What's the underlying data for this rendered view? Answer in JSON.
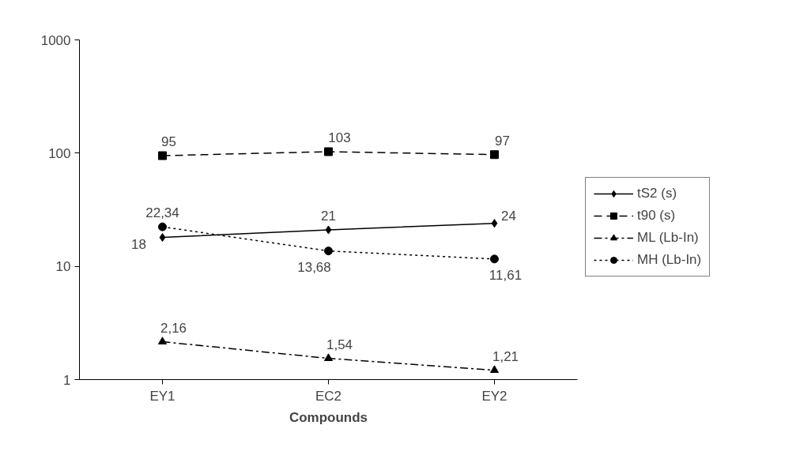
{
  "chart_data": {
    "type": "line",
    "xlabel": "Compounds",
    "categories": [
      "EY1",
      "EC2",
      "EY2"
    ],
    "log": "y",
    "ylim": [
      1,
      1000
    ],
    "yticks": [
      1,
      10,
      100,
      1000
    ],
    "grid": false,
    "legend": "right",
    "series": [
      {
        "name": "tS2 (s)",
        "color": "#000000",
        "marker": "diamond",
        "line_style": "solid",
        "values": [
          18,
          21,
          24
        ],
        "value_labels": [
          "18",
          "21",
          "24"
        ]
      },
      {
        "name": "t90 (s)",
        "color": "#000000",
        "marker": "square",
        "line_style": "dashed",
        "values": [
          95,
          103,
          97
        ],
        "value_labels": [
          "95",
          "103",
          "97"
        ]
      },
      {
        "name": "ML (Lb-In)",
        "color": "#000000",
        "marker": "triangle",
        "line_style": "dashdot",
        "values": [
          2.16,
          1.54,
          1.21
        ],
        "value_labels": [
          "2,16",
          "1,54",
          "1,21"
        ]
      },
      {
        "name": "MH (Lb-In)",
        "color": "#000000",
        "marker": "circle",
        "line_style": "dotted",
        "values": [
          22.34,
          13.68,
          11.61
        ],
        "value_labels": [
          "22,34",
          "13,68",
          "11,61"
        ]
      }
    ]
  }
}
